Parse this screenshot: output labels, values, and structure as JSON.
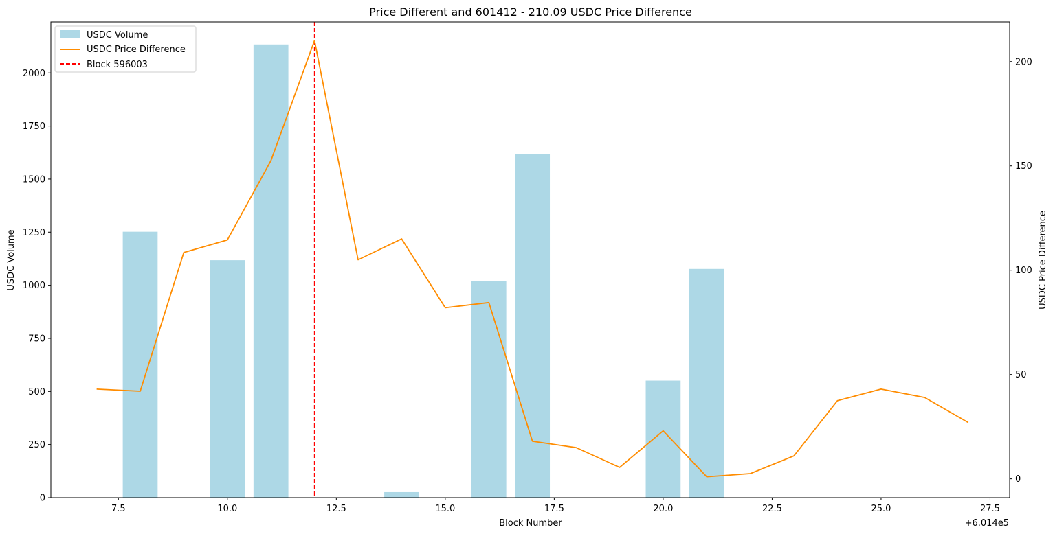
{
  "chart_data": {
    "type": "bar",
    "title": "Price Different and 601412 - 210.09 USDC Price Difference",
    "xlabel": "Block Number",
    "ylabel": "USDC Volume",
    "ylabel_right": "USDC Price Difference",
    "x_offset_label": "+6.014e5",
    "xlim": [
      5.95,
      27.95
    ],
    "ylim": [
      0,
      2240
    ],
    "ylim_right": [
      -9,
      219
    ],
    "x_ticks": [
      7.5,
      10.0,
      12.5,
      15.0,
      17.5,
      20.0,
      22.5,
      25.0,
      27.5
    ],
    "x_tick_labels": [
      "7.5",
      "10.0",
      "12.5",
      "15.0",
      "17.5",
      "20.0",
      "22.5",
      "25.0",
      "27.5"
    ],
    "y_ticks": [
      0,
      250,
      500,
      750,
      1000,
      1250,
      1500,
      1750,
      2000
    ],
    "y_tick_labels": [
      "0",
      "250",
      "500",
      "750",
      "1000",
      "1250",
      "1500",
      "1750",
      "2000"
    ],
    "y_ticks_right": [
      0,
      50,
      100,
      150,
      200
    ],
    "y_tick_labels_right": [
      "0",
      "50",
      "100",
      "150",
      "200"
    ],
    "bars": {
      "name": "USDC Volume",
      "color": "#add8e6",
      "width": 0.8,
      "x": [
        8,
        10,
        11,
        14,
        16,
        17,
        20,
        21
      ],
      "values": [
        1252,
        1118,
        2134,
        26,
        1020,
        1618,
        551,
        1077
      ]
    },
    "line": {
      "name": "USDC Price Difference",
      "color": "#ff8c00",
      "x": [
        7,
        8,
        9,
        10,
        11,
        12,
        13,
        14,
        15,
        16,
        17,
        18,
        19,
        20,
        21,
        22,
        23,
        24,
        25,
        26,
        27
      ],
      "values": [
        43,
        42,
        108.5,
        114.5,
        152.5,
        210.09,
        105,
        115,
        82,
        84.5,
        18,
        15,
        5.5,
        23,
        1,
        2.5,
        11,
        37.5,
        43,
        39,
        27
      ]
    },
    "vline": {
      "name": "Block 596003",
      "x": 12,
      "color": "#ff0000",
      "style": "dashed"
    },
    "legend": {
      "position": "top-left",
      "entries": [
        "USDC Volume",
        "USDC Price Difference",
        "Block 596003"
      ]
    },
    "grid": false
  }
}
